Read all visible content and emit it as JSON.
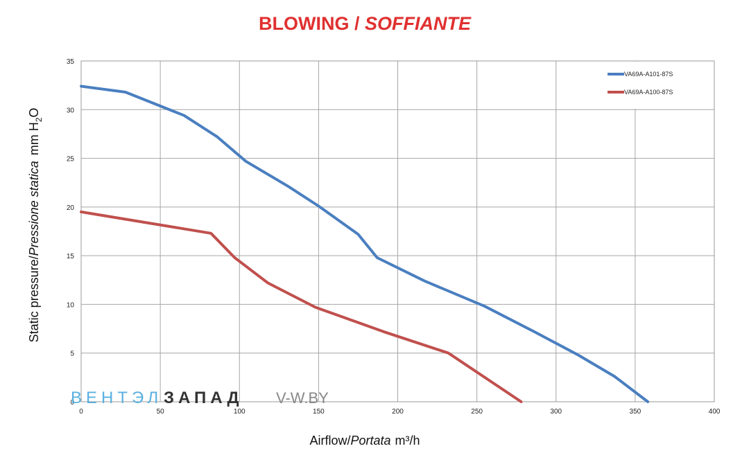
{
  "chart_data": {
    "type": "line",
    "title": "BLOWING",
    "title_sep": " / ",
    "title_italic": "SOFFIANTE",
    "xlabel": "Airflow/",
    "xlabel_italic": "Portata",
    "xlabel_unit": "m³/h",
    "ylabel": "Static pressure/",
    "ylabel_italic": "Pressione statica",
    "ylabel_unit": "mm  H",
    "ylabel_sub": "2",
    "ylabel_end": "O",
    "xlim": [
      0,
      400
    ],
    "ylim": [
      0,
      35
    ],
    "xticks": [
      0,
      50,
      100,
      150,
      200,
      250,
      300,
      350,
      400
    ],
    "yticks": [
      0,
      5,
      10,
      15,
      20,
      25,
      30,
      35
    ],
    "grid": true,
    "legend_position": "top-right",
    "series": [
      {
        "name": "VA69A-A101-87S",
        "color": "#4a7fc0",
        "x": [
          0,
          28,
          65,
          86,
          104,
          131,
          150,
          175,
          187,
          217,
          255,
          285,
          314,
          337,
          358
        ],
        "y": [
          32.4,
          31.8,
          29.4,
          27.2,
          24.7,
          22.1,
          20.1,
          17.2,
          14.8,
          12.4,
          9.8,
          7.3,
          4.8,
          2.6,
          0
        ]
      },
      {
        "name": "VA69A-A100-87S",
        "color": "#c0504d",
        "x": [
          0,
          82,
          97,
          118,
          148,
          191,
          232,
          278
        ],
        "y": [
          19.5,
          17.3,
          14.8,
          12.2,
          9.7,
          7.2,
          5.0,
          0
        ]
      }
    ]
  },
  "watermark": {
    "part1": "ВЕНТЭЛ",
    "part2": "ЗАПАД",
    "part3": "V-W.BY"
  }
}
